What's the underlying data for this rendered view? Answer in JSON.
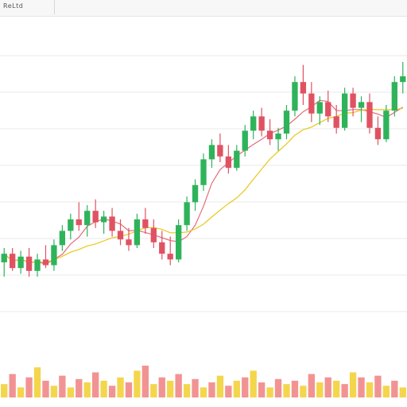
{
  "topbar": {
    "label": "ReLtd"
  },
  "chart_data": {
    "type": "candlestick",
    "up_color": "#2fb35a",
    "down_color": "#e05262",
    "ma_fast_color": "#e05262",
    "ma_slow_color": "#e6c200",
    "volume_colors": [
      "#f2cf2e",
      "#f08080"
    ],
    "grid": true,
    "y_range": [
      0,
      100
    ],
    "candles": [
      {
        "o": 25,
        "h": 30,
        "l": 20,
        "c": 28
      },
      {
        "o": 28,
        "h": 30,
        "l": 22,
        "c": 23
      },
      {
        "o": 23,
        "h": 29,
        "l": 21,
        "c": 27
      },
      {
        "o": 27,
        "h": 30,
        "l": 20,
        "c": 22
      },
      {
        "o": 22,
        "h": 28,
        "l": 20,
        "c": 26
      },
      {
        "o": 26,
        "h": 31,
        "l": 23,
        "c": 24
      },
      {
        "o": 24,
        "h": 33,
        "l": 22,
        "c": 31
      },
      {
        "o": 31,
        "h": 38,
        "l": 29,
        "c": 36
      },
      {
        "o": 36,
        "h": 42,
        "l": 33,
        "c": 40
      },
      {
        "o": 40,
        "h": 46,
        "l": 36,
        "c": 38
      },
      {
        "o": 38,
        "h": 45,
        "l": 34,
        "c": 43
      },
      {
        "o": 43,
        "h": 47,
        "l": 37,
        "c": 39
      },
      {
        "o": 39,
        "h": 43,
        "l": 35,
        "c": 41
      },
      {
        "o": 41,
        "h": 44,
        "l": 34,
        "c": 36
      },
      {
        "o": 36,
        "h": 40,
        "l": 31,
        "c": 33
      },
      {
        "o": 33,
        "h": 37,
        "l": 29,
        "c": 31
      },
      {
        "o": 31,
        "h": 42,
        "l": 30,
        "c": 40
      },
      {
        "o": 40,
        "h": 44,
        "l": 35,
        "c": 37
      },
      {
        "o": 37,
        "h": 40,
        "l": 30,
        "c": 32
      },
      {
        "o": 32,
        "h": 36,
        "l": 26,
        "c": 28
      },
      {
        "o": 28,
        "h": 34,
        "l": 24,
        "c": 26
      },
      {
        "o": 26,
        "h": 40,
        "l": 25,
        "c": 38
      },
      {
        "o": 38,
        "h": 48,
        "l": 36,
        "c": 46
      },
      {
        "o": 46,
        "h": 54,
        "l": 43,
        "c": 52
      },
      {
        "o": 52,
        "h": 63,
        "l": 50,
        "c": 61
      },
      {
        "o": 61,
        "h": 68,
        "l": 58,
        "c": 66
      },
      {
        "o": 66,
        "h": 70,
        "l": 60,
        "c": 62
      },
      {
        "o": 62,
        "h": 66,
        "l": 56,
        "c": 58
      },
      {
        "o": 58,
        "h": 66,
        "l": 57,
        "c": 64
      },
      {
        "o": 64,
        "h": 73,
        "l": 62,
        "c": 71
      },
      {
        "o": 71,
        "h": 78,
        "l": 68,
        "c": 76
      },
      {
        "o": 76,
        "h": 79,
        "l": 69,
        "c": 71
      },
      {
        "o": 71,
        "h": 75,
        "l": 66,
        "c": 68
      },
      {
        "o": 68,
        "h": 72,
        "l": 64,
        "c": 70
      },
      {
        "o": 70,
        "h": 80,
        "l": 68,
        "c": 78
      },
      {
        "o": 78,
        "h": 90,
        "l": 76,
        "c": 88
      },
      {
        "o": 88,
        "h": 94,
        "l": 80,
        "c": 84
      },
      {
        "o": 84,
        "h": 88,
        "l": 74,
        "c": 77
      },
      {
        "o": 77,
        "h": 83,
        "l": 73,
        "c": 81
      },
      {
        "o": 81,
        "h": 85,
        "l": 74,
        "c": 76
      },
      {
        "o": 76,
        "h": 80,
        "l": 70,
        "c": 72
      },
      {
        "o": 72,
        "h": 86,
        "l": 71,
        "c": 84
      },
      {
        "o": 84,
        "h": 86,
        "l": 76,
        "c": 79
      },
      {
        "o": 79,
        "h": 83,
        "l": 74,
        "c": 81
      },
      {
        "o": 81,
        "h": 84,
        "l": 70,
        "c": 72
      },
      {
        "o": 72,
        "h": 76,
        "l": 66,
        "c": 68
      },
      {
        "o": 68,
        "h": 80,
        "l": 67,
        "c": 78
      },
      {
        "o": 78,
        "h": 90,
        "l": 76,
        "c": 88
      },
      {
        "o": 88,
        "h": 95,
        "l": 84,
        "c": 90
      }
    ],
    "volume": [
      8,
      14,
      6,
      12,
      18,
      10,
      7,
      13,
      6,
      11,
      9,
      15,
      10,
      7,
      12,
      9,
      16,
      19,
      8,
      12,
      10,
      14,
      8,
      11,
      6,
      9,
      13,
      7,
      10,
      12,
      16,
      9,
      6,
      11,
      8,
      10,
      7,
      14,
      9,
      12,
      10,
      8,
      15,
      12,
      9,
      13,
      7,
      10,
      6
    ]
  }
}
